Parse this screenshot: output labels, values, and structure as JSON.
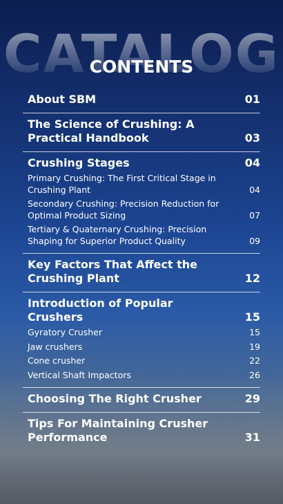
{
  "header": {
    "watermark": "CATALOG",
    "title": "CONTENTS"
  },
  "sections": [
    {
      "title": "About SBM",
      "page": "01"
    },
    {
      "title": "The Science of Crushing: A Practical Handbook",
      "page": "03"
    },
    {
      "title": "Crushing Stages",
      "page": "04",
      "subsections": [
        {
          "title": "Primary Crushing: The First Critical Stage in Crushing Plant",
          "page": "04"
        },
        {
          "title": "Secondary Crushing: Precision Reduction for Optimal Product Sizing",
          "page": "07"
        },
        {
          "title": "Tertiary & Quaternary Crushing: Precision Shaping for Superior Product Quality",
          "page": "09"
        }
      ]
    },
    {
      "title": "Key Factors That Affect the Crushing Plant",
      "page": "12"
    },
    {
      "title": "Introduction of Popular Crushers",
      "page": "15",
      "subsections": [
        {
          "title": "Gyratory Crusher",
          "page": "15"
        },
        {
          "title": "Jaw crushers",
          "page": "19"
        },
        {
          "title": "Cone crusher",
          "page": "22"
        },
        {
          "title": "Vertical Shaft Impactors",
          "page": "26"
        }
      ]
    },
    {
      "title": "Choosing The Right Crusher",
      "page": "29"
    },
    {
      "title": "Tips For Maintaining Crusher Performance",
      "page": "31"
    }
  ]
}
